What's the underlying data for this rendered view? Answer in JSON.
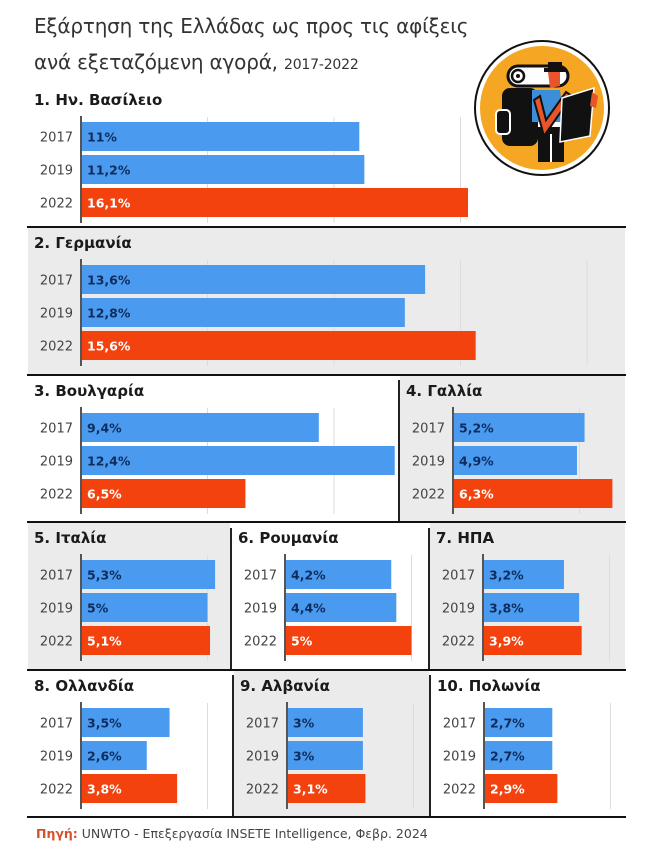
{
  "title": {
    "line1": "Εξάρτηση της Ελλάδας ως προς τις αφίξεις",
    "line2": "ανά εξεταζόμενη αγορά,",
    "years": "2017-2022"
  },
  "logo": {
    "icon": "backpacker-with-map-icon"
  },
  "colors": {
    "blue": "#4a9bef",
    "red": "#f4420f",
    "label_dark": "#0f2c5c",
    "label_light": "#ffffff",
    "panel_gray": "#ecebec",
    "source": "#d5502a"
  },
  "chart_data": {
    "type": "bar",
    "orientation": "horizontal",
    "title": "Εξάρτηση της Ελλάδας ως προς τις αφίξεις ανά εξεταζόμενη αγορά, 2017-2022",
    "unit": "%",
    "categories": [
      "2017",
      "2019",
      "2022"
    ],
    "xlim": [
      0,
      20
    ],
    "grid": true,
    "panels": [
      {
        "name": "1. Ην. Βασίλειο",
        "values": [
          11,
          11.2,
          16.1
        ],
        "labels": [
          "11%",
          "11,2%",
          "16,1%"
        ]
      },
      {
        "name": "2. Γερμανία",
        "values": [
          13.6,
          12.8,
          15.6
        ],
        "labels": [
          "13,6%",
          "12,8%",
          "15,6%"
        ]
      },
      {
        "name": "3. Βουλγαρία",
        "values": [
          9.4,
          12.4,
          6.5
        ],
        "labels": [
          "9,4%",
          "12,4%",
          "6,5%"
        ]
      },
      {
        "name": "4. Γαλλία",
        "values": [
          5.2,
          4.9,
          6.3
        ],
        "labels": [
          "5,2%",
          "4,9%",
          "6,3%"
        ]
      },
      {
        "name": "5. Ιταλία",
        "values": [
          5.3,
          5,
          5.1
        ],
        "labels": [
          "5,3%",
          "5%",
          "5,1%"
        ]
      },
      {
        "name": "6. Ρουμανία",
        "values": [
          4.2,
          4.4,
          5
        ],
        "labels": [
          "4,2%",
          "4,4%",
          "5%"
        ]
      },
      {
        "name": "7. ΗΠΑ",
        "values": [
          3.2,
          3.8,
          3.9
        ],
        "labels": [
          "3,2%",
          "3,8%",
          "3,9%"
        ]
      },
      {
        "name": "8. Ολλανδία",
        "values": [
          3.5,
          2.6,
          3.8
        ],
        "labels": [
          "3,5%",
          "2,6%",
          "3,8%"
        ]
      },
      {
        "name": "9. Αλβανία",
        "values": [
          3,
          3,
          3.1
        ],
        "labels": [
          "3%",
          "3%",
          "3,1%"
        ]
      },
      {
        "name": "10. Πολωνία",
        "values": [
          2.7,
          2.7,
          2.9
        ],
        "labels": [
          "2,7%",
          "2,7%",
          "2,9%"
        ]
      }
    ]
  },
  "footer": {
    "source_label": "Πηγή:",
    "source_text": "UNWTO - Επεξεργασία INSETE Intelligence, Φεβρ. 2024"
  }
}
